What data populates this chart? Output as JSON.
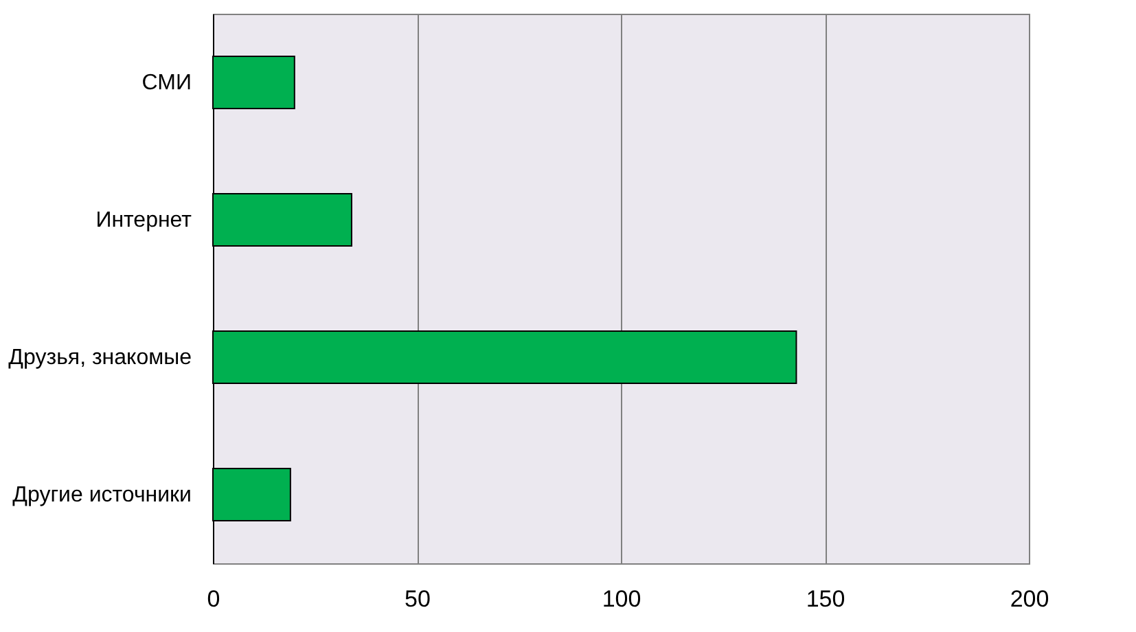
{
  "chart_data": {
    "type": "bar",
    "orientation": "horizontal",
    "categories": [
      "СМИ",
      "Интернет",
      "Друзья, знакомые",
      "Другие источники"
    ],
    "values": [
      20,
      34,
      143,
      19
    ],
    "color": "#00b050",
    "xlim": [
      0,
      200
    ],
    "xticks": [
      0,
      50,
      100,
      150,
      200
    ],
    "grid": "x"
  }
}
